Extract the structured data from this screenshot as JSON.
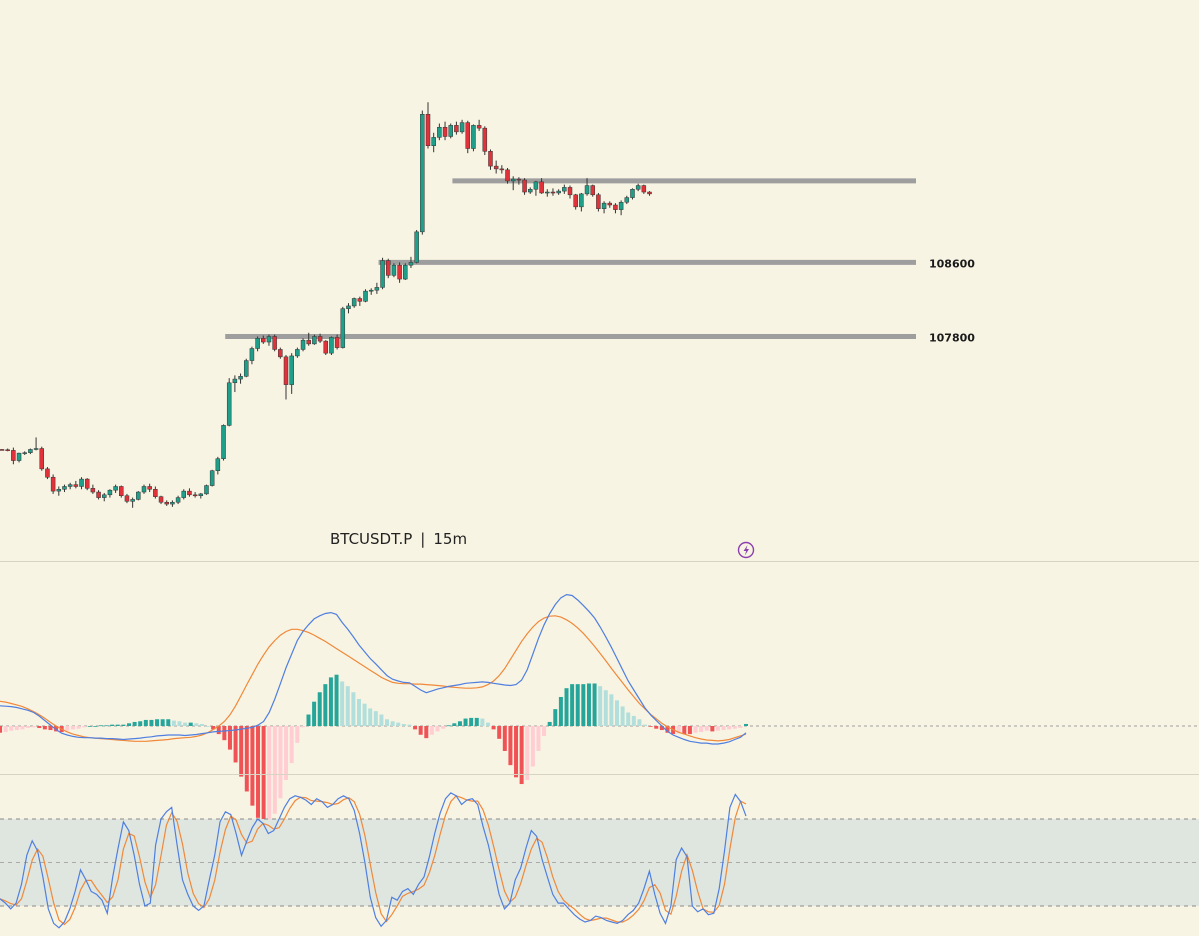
{
  "chart_data": [
    {
      "type": "candlestick",
      "symbol_label": "BTCUSDT.P",
      "separator": "|",
      "interval_label": "15m",
      "colors": {
        "up": "#1f9e89",
        "down": "#e0323b",
        "wick": "#333333",
        "level_line": "#9e9e9e"
      },
      "levels": [
        {
          "price": 108600,
          "label": "108600",
          "from_index": 67
        },
        {
          "price": 107800,
          "label": "107800",
          "from_index": 40
        },
        {
          "price": 109480,
          "label": "",
          "from_index": 80
        }
      ],
      "candles": [
        [
          106580,
          106585,
          106570,
          106577
        ],
        [
          106577,
          106590,
          106560,
          106570
        ],
        [
          106570,
          106600,
          106420,
          106460
        ],
        [
          106460,
          106545,
          106440,
          106540
        ],
        [
          106540,
          106560,
          106520,
          106545
        ],
        [
          106545,
          106590,
          106530,
          106580
        ],
        [
          106580,
          106710,
          106570,
          106590
        ],
        [
          106590,
          106610,
          106350,
          106370
        ],
        [
          106370,
          106390,
          106260,
          106280
        ],
        [
          106280,
          106310,
          106100,
          106130
        ],
        [
          106130,
          106180,
          106080,
          106150
        ],
        [
          106150,
          106200,
          106120,
          106180
        ],
        [
          106180,
          106220,
          106150,
          106200
        ],
        [
          106200,
          106240,
          106160,
          106180
        ],
        [
          106180,
          106280,
          106150,
          106260
        ],
        [
          106260,
          106270,
          106140,
          106160
        ],
        [
          106160,
          106200,
          106100,
          106120
        ],
        [
          106120,
          106140,
          106040,
          106060
        ],
        [
          106060,
          106110,
          106020,
          106090
        ],
        [
          106090,
          106150,
          106060,
          106140
        ],
        [
          106140,
          106200,
          106110,
          106180
        ],
        [
          106180,
          106190,
          106060,
          106080
        ],
        [
          106080,
          106100,
          106000,
          106020
        ],
        [
          106020,
          106060,
          105950,
          106040
        ],
        [
          106040,
          106130,
          106030,
          106120
        ],
        [
          106120,
          106200,
          106100,
          106180
        ],
        [
          106180,
          106210,
          106120,
          106150
        ],
        [
          106150,
          106180,
          106050,
          106070
        ],
        [
          106070,
          106080,
          105990,
          106010
        ],
        [
          106010,
          106030,
          105970,
          105990
        ],
        [
          105990,
          106030,
          105960,
          106010
        ],
        [
          106010,
          106080,
          105990,
          106060
        ],
        [
          106060,
          106150,
          106040,
          106130
        ],
        [
          106130,
          106160,
          106070,
          106090
        ],
        [
          106090,
          106120,
          106060,
          106080
        ],
        [
          106080,
          106110,
          106050,
          106100
        ],
        [
          106100,
          106200,
          106090,
          106190
        ],
        [
          106190,
          106360,
          106180,
          106350
        ],
        [
          106350,
          106500,
          106310,
          106480
        ],
        [
          106480,
          106850,
          106460,
          106840
        ],
        [
          106840,
          107350,
          106830,
          107300
        ],
        [
          107300,
          107380,
          107200,
          107340
        ],
        [
          107340,
          107400,
          107290,
          107370
        ],
        [
          107370,
          107560,
          107360,
          107540
        ],
        [
          107540,
          107690,
          107500,
          107670
        ],
        [
          107670,
          107800,
          107640,
          107780
        ],
        [
          107780,
          107810,
          107720,
          107740
        ],
        [
          107740,
          107820,
          107700,
          107800
        ],
        [
          107800,
          107820,
          107640,
          107660
        ],
        [
          107660,
          107680,
          107560,
          107580
        ],
        [
          107580,
          107600,
          107120,
          107280
        ],
        [
          107280,
          107620,
          107180,
          107590
        ],
        [
          107590,
          107680,
          107570,
          107660
        ],
        [
          107660,
          107780,
          107640,
          107760
        ],
        [
          107760,
          107840,
          107700,
          107720
        ],
        [
          107720,
          107820,
          107710,
          107800
        ],
        [
          107800,
          107830,
          107730,
          107750
        ],
        [
          107750,
          107760,
          107600,
          107620
        ],
        [
          107620,
          107800,
          107600,
          107790
        ],
        [
          107790,
          107820,
          107660,
          107680
        ],
        [
          107680,
          108120,
          107670,
          108100
        ],
        [
          108100,
          108160,
          108050,
          108130
        ],
        [
          108130,
          108220,
          108110,
          108210
        ],
        [
          108210,
          108230,
          108130,
          108180
        ],
        [
          108180,
          108310,
          108170,
          108290
        ],
        [
          108290,
          108320,
          108250,
          108300
        ],
        [
          108300,
          108380,
          108260,
          108330
        ],
        [
          108330,
          108650,
          108310,
          108620
        ],
        [
          108620,
          108640,
          108430,
          108460
        ],
        [
          108460,
          108590,
          108440,
          108570
        ],
        [
          108570,
          108600,
          108380,
          108420
        ],
        [
          108420,
          108590,
          108410,
          108570
        ],
        [
          108570,
          108660,
          108540,
          108600
        ],
        [
          108600,
          108950,
          108590,
          108930
        ],
        [
          108930,
          110240,
          108900,
          110200
        ],
        [
          110200,
          110330,
          109830,
          109860
        ],
        [
          109860,
          110000,
          109790,
          109950
        ],
        [
          109950,
          110100,
          109920,
          110060
        ],
        [
          110060,
          110120,
          109920,
          109960
        ],
        [
          109960,
          110100,
          109940,
          110080
        ],
        [
          110080,
          110120,
          109980,
          110010
        ],
        [
          110010,
          110140,
          109990,
          110110
        ],
        [
          110110,
          110130,
          109780,
          109830
        ],
        [
          109830,
          110090,
          109800,
          110080
        ],
        [
          110080,
          110140,
          110020,
          110050
        ],
        [
          110050,
          110070,
          109760,
          109800
        ],
        [
          109800,
          109820,
          109600,
          109640
        ],
        [
          109640,
          109700,
          109560,
          109610
        ],
        [
          109610,
          109650,
          109560,
          109600
        ],
        [
          109600,
          109620,
          109450,
          109480
        ],
        [
          109480,
          109530,
          109380,
          109500
        ],
        [
          109500,
          109520,
          109440,
          109490
        ],
        [
          109490,
          109510,
          109330,
          109360
        ],
        [
          109360,
          109410,
          109340,
          109390
        ],
        [
          109390,
          109480,
          109320,
          109470
        ],
        [
          109470,
          109510,
          109340,
          109350
        ],
        [
          109350,
          109390,
          109310,
          109360
        ],
        [
          109360,
          109400,
          109320,
          109350
        ],
        [
          109350,
          109390,
          109330,
          109370
        ],
        [
          109370,
          109440,
          109340,
          109410
        ],
        [
          109410,
          109430,
          109290,
          109330
        ],
        [
          109330,
          109340,
          109170,
          109200
        ],
        [
          109200,
          109350,
          109150,
          109340
        ],
        [
          109340,
          109510,
          109320,
          109430
        ],
        [
          109430,
          109440,
          109310,
          109330
        ],
        [
          109330,
          109350,
          109150,
          109180
        ],
        [
          109180,
          109260,
          109130,
          109240
        ],
        [
          109240,
          109260,
          109190,
          109220
        ],
        [
          109220,
          109240,
          109130,
          109170
        ],
        [
          109170,
          109270,
          109110,
          109250
        ],
        [
          109250,
          109320,
          109230,
          109300
        ],
        [
          109300,
          109400,
          109280,
          109390
        ],
        [
          109390,
          109450,
          109370,
          109430
        ],
        [
          109430,
          109440,
          109340,
          109360
        ],
        [
          109360,
          109370,
          109320,
          109340
        ]
      ]
    },
    {
      "type": "macd",
      "colors": {
        "macd_line": "#4f7fe0",
        "signal_line": "#f0883a",
        "hist_up_strong": "#26a69a",
        "hist_up_weak": "#b2dfdb",
        "hist_down_strong": "#f05355",
        "hist_down_weak": "#ffcdd2",
        "zero_line": "#9e9e9e"
      },
      "macd": [
        45,
        44,
        43,
        41,
        38,
        35,
        30,
        22,
        12,
        2,
        -8,
        -16,
        -20,
        -23,
        -25,
        -26,
        -26,
        -27,
        -27,
        -28,
        -28,
        -29,
        -30,
        -29,
        -28,
        -27,
        -25,
        -24,
        -22,
        -21,
        -20,
        -20,
        -20,
        -21,
        -20,
        -19,
        -17,
        -15,
        -13,
        -12,
        -11,
        -10,
        -9,
        -7,
        -5,
        -3,
        2,
        10,
        30,
        60,
        95,
        130,
        160,
        190,
        210,
        225,
        238,
        245,
        250,
        252,
        248,
        230,
        215,
        198,
        180,
        165,
        150,
        138,
        125,
        112,
        104,
        100,
        97,
        96,
        88,
        80,
        74,
        78,
        82,
        85,
        88,
        90,
        92,
        95,
        96,
        97,
        98,
        97,
        95,
        93,
        91,
        90,
        92,
        102,
        125,
        160,
        195,
        225,
        250,
        270,
        285,
        292,
        290,
        280,
        268,
        255,
        240,
        220,
        198,
        175,
        150,
        125,
        100,
        80,
        60,
        40,
        25,
        12,
        0,
        -12,
        -20,
        -25,
        -30,
        -34,
        -36,
        -38,
        -38,
        -40,
        -40,
        -38,
        -35,
        -30,
        -25,
        -15
      ],
      "signal": [
        55,
        53,
        50,
        47,
        43,
        38,
        32,
        25,
        17,
        8,
        0,
        -7,
        -13,
        -18,
        -21,
        -24,
        -26,
        -27,
        -28,
        -29,
        -30,
        -31,
        -32,
        -33,
        -34,
        -34,
        -34,
        -33,
        -32,
        -31,
        -30,
        -28,
        -27,
        -26,
        -25,
        -23,
        -20,
        -15,
        -8,
        0,
        10,
        25,
        45,
        68,
        92,
        115,
        138,
        158,
        176,
        190,
        202,
        210,
        215,
        215,
        212,
        208,
        202,
        195,
        188,
        180,
        172,
        164,
        156,
        148,
        140,
        132,
        124,
        116,
        108,
        102,
        97,
        95,
        94,
        94,
        93,
        93,
        92,
        91,
        90,
        89,
        87,
        86,
        85,
        84,
        84,
        85,
        87,
        92,
        100,
        112,
        128,
        148,
        168,
        188,
        205,
        220,
        232,
        240,
        244,
        245,
        242,
        236,
        228,
        218,
        206,
        192,
        177,
        161,
        145,
        128,
        112,
        96,
        80,
        65,
        50,
        38,
        26,
        16,
        6,
        -2,
        -8,
        -14,
        -18,
        -22,
        -26,
        -29,
        -31,
        -32,
        -33,
        -32,
        -30,
        -26,
        -22,
        -18
      ],
      "zero": 0
    },
    {
      "type": "stochastic",
      "colors": {
        "k_line": "#4f7fe0",
        "d_line": "#f0883a",
        "band_fill": "#dfe6e0",
        "band_line": "#888888"
      },
      "bands": [
        80,
        50,
        20
      ],
      "k": [
        25,
        22,
        18,
        22,
        35,
        55,
        65,
        58,
        40,
        18,
        8,
        5,
        9,
        18,
        30,
        45,
        38,
        30,
        28,
        24,
        15,
        40,
        60,
        78,
        72,
        55,
        35,
        20,
        22,
        62,
        80,
        85,
        88,
        62,
        38,
        28,
        20,
        17,
        20,
        38,
        55,
        78,
        85,
        83,
        70,
        55,
        65,
        74,
        80,
        77,
        70,
        72,
        80,
        88,
        94,
        96,
        95,
        93,
        90,
        94,
        92,
        88,
        90,
        94,
        96,
        94,
        86,
        70,
        50,
        26,
        12,
        6,
        10,
        26,
        24,
        30,
        32,
        28,
        35,
        40,
        54,
        70,
        84,
        94,
        98,
        96,
        90,
        93,
        94,
        90,
        75,
        62,
        45,
        28,
        18,
        22,
        38,
        46,
        60,
        72,
        68,
        52,
        40,
        28,
        22,
        22,
        18,
        14,
        11,
        9,
        10,
        13,
        12,
        10,
        9,
        8,
        10,
        14,
        17,
        22,
        32,
        44,
        28,
        15,
        8,
        20,
        52,
        60,
        54,
        20,
        16,
        18,
        14,
        15,
        32,
        58,
        88,
        97,
        92,
        82
      ]
    }
  ]
}
